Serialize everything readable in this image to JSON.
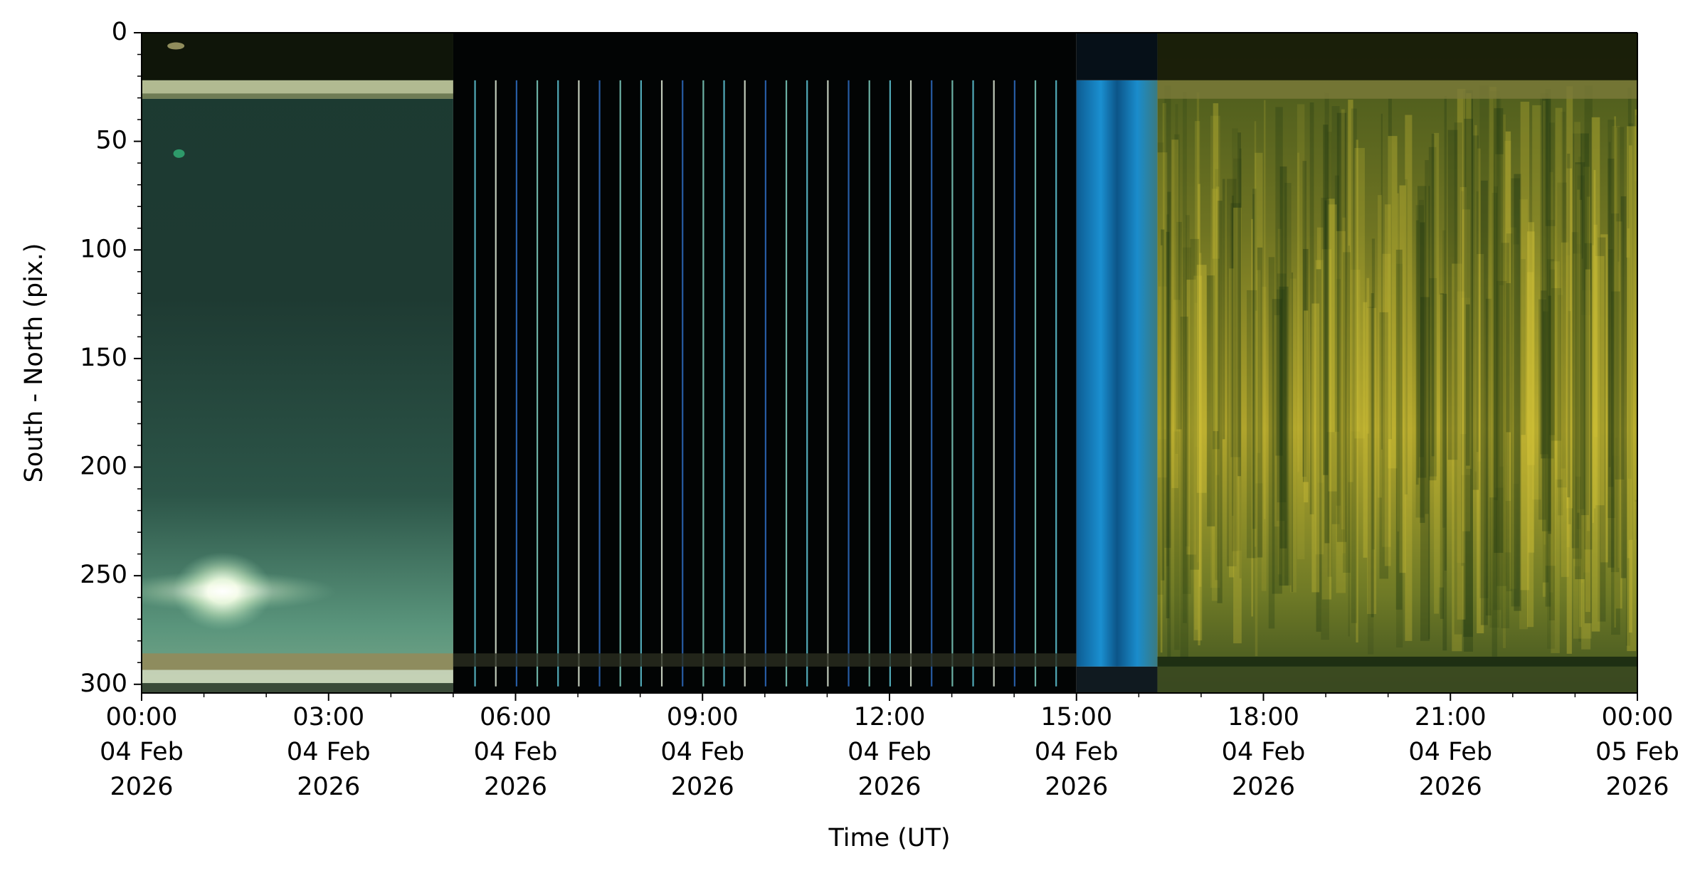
{
  "chart_data": {
    "type": "keogram",
    "x_label": "Time (UT)",
    "y_label": "South - North (pix.)",
    "xlim": [
      "2026-02-04T00:00",
      "2026-02-05T00:00"
    ],
    "xticks": [
      {
        "value": "2026-02-04T00:00",
        "label": "00:00\n04 Feb\n2026"
      },
      {
        "value": "2026-02-04T03:00",
        "label": "03:00\n04 Feb\n2026"
      },
      {
        "value": "2026-02-04T06:00",
        "label": "06:00\n04 Feb\n2026"
      },
      {
        "value": "2026-02-04T09:00",
        "label": "09:00\n04 Feb\n2026"
      },
      {
        "value": "2026-02-04T12:00",
        "label": "12:00\n04 Feb\n2026"
      },
      {
        "value": "2026-02-04T15:00",
        "label": "15:00\n04 Feb\n2026"
      },
      {
        "value": "2026-02-04T18:00",
        "label": "18:00\n04 Feb\n2026"
      },
      {
        "value": "2026-02-04T21:00",
        "label": "21:00\n04 Feb\n2026"
      },
      {
        "value": "2026-02-05T00:00",
        "label": "00:00\n05 Feb\n2026"
      }
    ],
    "ylim": [
      304,
      0
    ],
    "yticks": [
      0,
      50,
      100,
      150,
      200,
      250,
      300
    ],
    "grid": false
  }
}
